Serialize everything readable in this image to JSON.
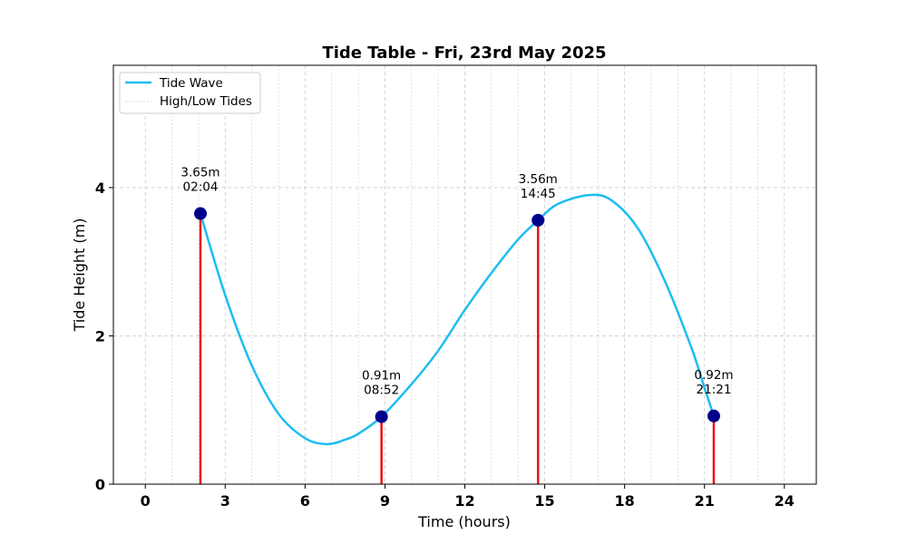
{
  "chart_data": {
    "type": "line",
    "title": "Tide Table - Fri, 23rd May 2025",
    "xlabel": "Time (hours)",
    "ylabel": "Tide Height (m)",
    "xlim": [
      -1.2,
      25.2
    ],
    "ylim": [
      0,
      5.65
    ],
    "xticks": [
      0,
      3,
      6,
      9,
      12,
      15,
      18,
      21,
      24
    ],
    "xtick_labels": [
      "0",
      "3",
      "6",
      "9",
      "12",
      "15",
      "18",
      "21",
      "24"
    ],
    "yticks": [
      0,
      2,
      4
    ],
    "ytick_labels": [
      "0",
      "2",
      "4"
    ],
    "grid": true,
    "legend": {
      "placement": "top-left",
      "entries": [
        "Tide Wave",
        "High/Low Tides"
      ]
    },
    "series": [
      {
        "name": "Tide Wave",
        "color": "#1cbdf2",
        "x": [
          2.07,
          3.0,
          4.0,
          5.0,
          6.0,
          6.83,
          7.5,
          8.0,
          8.87,
          10.0,
          11.0,
          12.0,
          13.0,
          14.0,
          14.75,
          15.5,
          16.67,
          17.5,
          18.5,
          19.5,
          20.5,
          21.0,
          21.35
        ],
        "y": [
          3.65,
          2.55,
          1.6,
          0.95,
          0.62,
          0.54,
          0.6,
          0.68,
          0.91,
          1.35,
          1.8,
          2.35,
          2.85,
          3.3,
          3.56,
          3.78,
          3.9,
          3.83,
          3.45,
          2.75,
          1.85,
          1.3,
          0.92
        ]
      }
    ],
    "tides": [
      {
        "time": 2.07,
        "height": 3.65,
        "label_height": "3.65m",
        "label_time": "02:04"
      },
      {
        "time": 8.87,
        "height": 0.91,
        "label_height": "0.91m",
        "label_time": "08:52"
      },
      {
        "time": 14.75,
        "height": 3.56,
        "label_height": "3.56m",
        "label_time": "14:45"
      },
      {
        "time": 21.35,
        "height": 0.92,
        "label_height": "0.92m",
        "label_time": "21:21"
      }
    ],
    "colors": {
      "wave": "#1cbdf2",
      "stem": "#ee1111",
      "marker": "#00008b",
      "grid": "#cccccc"
    }
  }
}
